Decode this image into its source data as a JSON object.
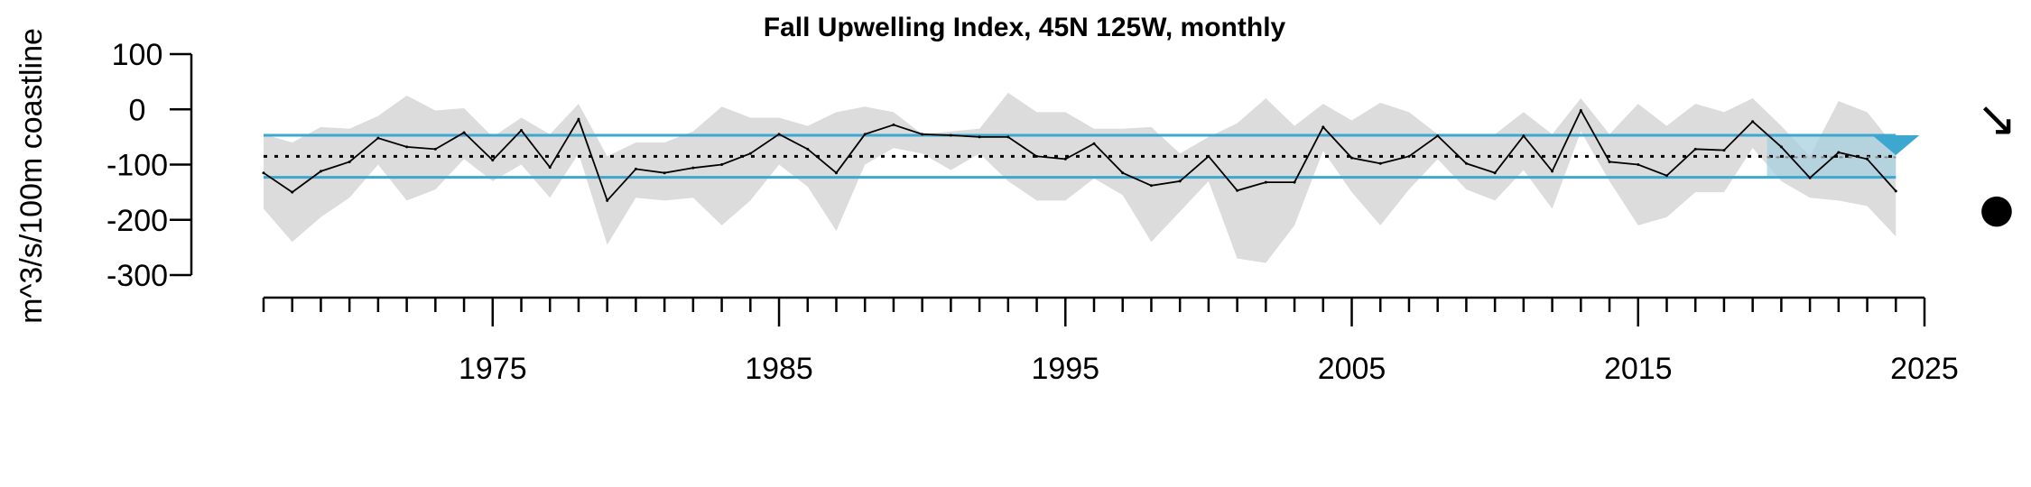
{
  "chart_data": {
    "type": "line",
    "title": "Fall Upwelling Index, 45N 125W, monthly",
    "xlabel": "",
    "ylabel": "m^3/s/100m coastline",
    "xlim": [
      1967,
      2025
    ],
    "ylim": [
      -300,
      100
    ],
    "x_ticks": [
      "1975",
      "1985",
      "1995",
      "2005",
      "2015",
      "2025"
    ],
    "y_ticks": [
      "100",
      "0",
      "-100",
      "-200",
      "-300"
    ],
    "grid": false,
    "reference_lines": {
      "mean": -85,
      "upper_sd": -47,
      "lower_sd": -123
    },
    "recent_period": [
      2020,
      2024
    ],
    "trend_symbol": "↘",
    "mean_symbol": "●",
    "colors": {
      "line": "#000000",
      "band": "#dcdcdc",
      "sd_lines": "#3ca7cf",
      "recent_box": "#a8cfe0",
      "highlight": "#3ca7cf",
      "mean_line": "#000000"
    },
    "series": [
      {
        "x": [
          1967,
          1968,
          1969,
          1970,
          1971,
          1972,
          1973,
          1974,
          1975,
          1976,
          1977,
          1978,
          1979,
          1980,
          1981,
          1982,
          1983,
          1984,
          1985,
          1986,
          1987,
          1988,
          1989,
          1990,
          1991,
          1992,
          1993,
          1994,
          1995,
          1996,
          1997,
          1998,
          1999,
          2000,
          2001,
          2002,
          2003,
          2004,
          2005,
          2006,
          2007,
          2008,
          2009,
          2010,
          2011,
          2012,
          2013,
          2014,
          2015,
          2016,
          2017,
          2018,
          2019,
          2020,
          2021,
          2022,
          2023,
          2024
        ],
        "values": [
          -115,
          -150,
          -112,
          -95,
          -52,
          -68,
          -72,
          -42,
          -92,
          -38,
          -105,
          -18,
          -165,
          -108,
          -115,
          -106,
          -100,
          -80,
          -45,
          -72,
          -115,
          -45,
          -28,
          -45,
          -47,
          -50,
          -50,
          -85,
          -90,
          -62,
          -115,
          -138,
          -130,
          -85,
          -147,
          -132,
          -132,
          -32,
          -88,
          -98,
          -85,
          -48,
          -98,
          -115,
          -48,
          -112,
          -2,
          -95,
          -100,
          -120,
          -72,
          -74,
          -22,
          -68,
          -124,
          -78,
          -90,
          -148
        ],
        "upper": [
          -45,
          -60,
          -32,
          -35,
          -12,
          25,
          -2,
          2,
          -50,
          -15,
          -45,
          10,
          -85,
          -60,
          -60,
          -40,
          5,
          -15,
          -15,
          -30,
          -5,
          5,
          -5,
          -45,
          -40,
          -35,
          30,
          -5,
          -5,
          -35,
          -35,
          -32,
          -80,
          -50,
          -25,
          20,
          -30,
          10,
          -20,
          12,
          -5,
          -45,
          -45,
          -45,
          -5,
          -45,
          20,
          -45,
          10,
          -30,
          10,
          -5,
          20,
          -30,
          -85,
          15,
          -5,
          -70
        ],
        "lower": [
          -180,
          -240,
          -195,
          -160,
          -100,
          -165,
          -145,
          -90,
          -130,
          -100,
          -160,
          -80,
          -245,
          -160,
          -165,
          -160,
          -210,
          -165,
          -100,
          -140,
          -220,
          -100,
          -70,
          -80,
          -110,
          -80,
          -130,
          -165,
          -165,
          -125,
          -155,
          -240,
          -185,
          -130,
          -270,
          -278,
          -210,
          -75,
          -150,
          -210,
          -145,
          -90,
          -145,
          -165,
          -110,
          -180,
          -40,
          -130,
          -210,
          -195,
          -150,
          -150,
          -70,
          -130,
          -160,
          -165,
          -175,
          -230
        ]
      }
    ]
  }
}
